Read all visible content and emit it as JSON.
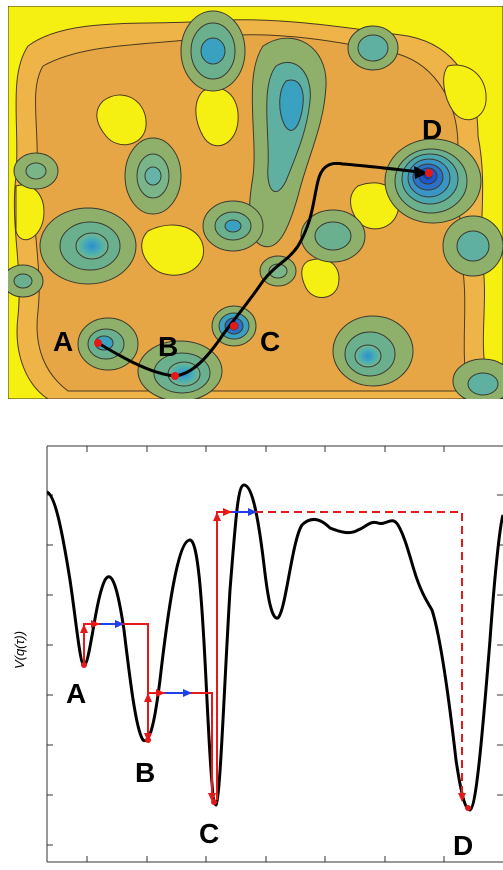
{
  "map": {
    "points": [
      "A",
      "B",
      "C",
      "D"
    ]
  },
  "profile": {
    "ylabel": "V(q(τ))",
    "points": [
      "A",
      "B",
      "C",
      "D"
    ]
  },
  "colors": {
    "background": "#f5f012",
    "high": "#f0b442",
    "mid": "#e7a646",
    "lowgreen": "#8fb06a",
    "teal": "#4aa7ae",
    "deep": "#2a71c8",
    "path": "#000000",
    "marker": "#e61919",
    "arrow_red": "#e61919",
    "arrow_blue": "#1f3fe8"
  }
}
